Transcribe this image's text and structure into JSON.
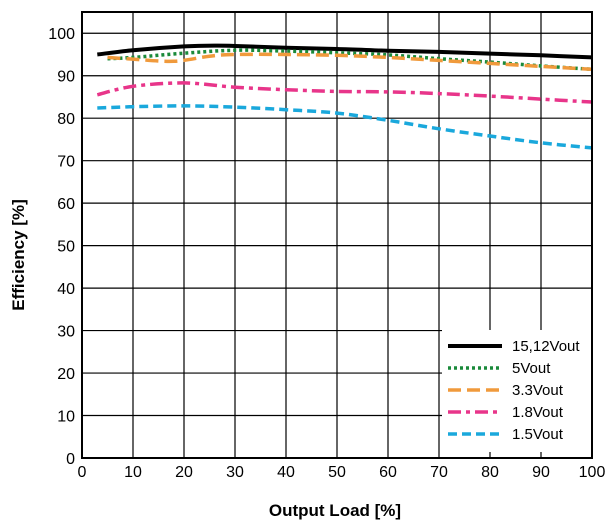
{
  "chart_data": {
    "type": "line",
    "xlabel": "Output Load [%]",
    "ylabel": "Efficiency [%]",
    "xlim": [
      0,
      100
    ],
    "ylim": [
      0,
      105
    ],
    "xticks": [
      "0",
      "10",
      "20",
      "30",
      "40",
      "50",
      "60",
      "70",
      "80",
      "90",
      "100"
    ],
    "yticks": [
      "0",
      "10",
      "20",
      "30",
      "40",
      "50",
      "60",
      "70",
      "80",
      "90",
      "100"
    ],
    "grid": true,
    "legend_position": "bottom-right",
    "series": [
      {
        "name": "15,12Vout",
        "color": "#000000",
        "dash": "solid",
        "x": [
          3,
          10,
          20,
          26,
          30,
          40,
          50,
          60,
          70,
          80,
          90,
          100
        ],
        "y": [
          95,
          96,
          96.9,
          97.1,
          97,
          96.6,
          96.3,
          95.9,
          95.6,
          95.2,
          94.8,
          94.3
        ]
      },
      {
        "name": "5Vout",
        "color": "#1a8a3a",
        "dash": "dot",
        "x": [
          5,
          10,
          20,
          30,
          40,
          50,
          60,
          70,
          80,
          90,
          100
        ],
        "y": [
          94,
          94.3,
          95.3,
          96,
          95.8,
          95.4,
          94.9,
          94,
          93.2,
          92.3,
          91.5
        ]
      },
      {
        "name": "3.3Vout",
        "color": "#f09a3c",
        "dash": "longdash",
        "x": [
          5,
          10,
          18,
          25,
          30,
          40,
          50,
          60,
          70,
          80,
          90,
          100
        ],
        "y": [
          94.3,
          93.9,
          93.4,
          94.6,
          95,
          95,
          94.8,
          94.3,
          93.6,
          92.9,
          92.2,
          91.5
        ]
      },
      {
        "name": "1.8Vout",
        "color": "#e8358a",
        "dash": "dashdot",
        "x": [
          3,
          10,
          20,
          30,
          40,
          50,
          60,
          70,
          80,
          90,
          100
        ],
        "y": [
          85.5,
          87.5,
          88.3,
          87.3,
          86.7,
          86.3,
          86.2,
          85.8,
          85.2,
          84.5,
          83.8
        ]
      },
      {
        "name": "1.5Vout",
        "color": "#1aa8dc",
        "dash": "dash",
        "x": [
          3,
          10,
          20,
          30,
          40,
          50,
          60,
          70,
          80,
          90,
          100
        ],
        "y": [
          82.4,
          82.7,
          82.9,
          82.6,
          82,
          81.2,
          79.5,
          77.5,
          75.8,
          74.2,
          73
        ]
      }
    ]
  }
}
